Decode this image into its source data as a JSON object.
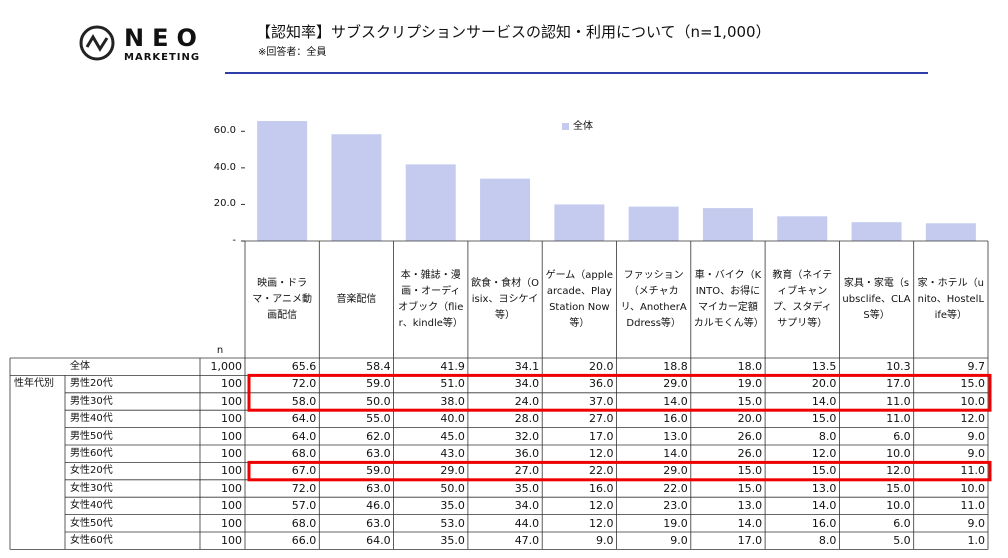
{
  "logo": {
    "name": "NEO",
    "sub": "MARKETING"
  },
  "header": {
    "title": "【認知率】サブスクリプションサービスの認知・利用について（n=1,000）",
    "subtitle": "※回答者：全員"
  },
  "chart_data": {
    "type": "bar",
    "categories": [
      "映画・ドラマ・アニメ動画配信",
      "音楽配信",
      "本・雑誌・漫画・オーディオブック（flier、kindle等）",
      "飲食・食材（Oisix、ヨシケイ等）",
      "ゲーム（apple arcade、PlayStation Now等）",
      "ファッション（メチャカリ、AnotherADdress等）",
      "車・バイク（KINTO、お得にマイカー定額カルモくん等）",
      "教育（ネイティブキャンプ、スタディサプリ等）",
      "家具・家電（subsclife、CLAS等）",
      "家・ホテル（unito、HostelLife等）"
    ],
    "series": [
      {
        "name": "全体",
        "color": "#c5cbef",
        "values": [
          65.6,
          58.4,
          41.9,
          34.1,
          20.0,
          18.8,
          18.0,
          13.5,
          10.3,
          9.7
        ]
      }
    ],
    "ylim": [
      0,
      70
    ],
    "yticks": [
      {
        "value": 0,
        "label": "-"
      },
      {
        "value": 20,
        "label": "20.0"
      },
      {
        "value": 40,
        "label": "40.0"
      },
      {
        "value": 60,
        "label": "60.0"
      }
    ],
    "legend": "top"
  },
  "table": {
    "n_header": "n",
    "group": "性年代別",
    "total": {
      "label": "全体",
      "n": "1,000",
      "values": [
        "65.6",
        "58.4",
        "41.9",
        "34.1",
        "20.0",
        "18.8",
        "18.0",
        "13.5",
        "10.3",
        "9.7"
      ]
    },
    "rows": [
      {
        "label": "男性20代",
        "n": "100",
        "values": [
          "72.0",
          "59.0",
          "51.0",
          "34.0",
          "36.0",
          "29.0",
          "19.0",
          "20.0",
          "17.0",
          "15.0"
        ]
      },
      {
        "label": "男性30代",
        "n": "100",
        "values": [
          "58.0",
          "50.0",
          "38.0",
          "24.0",
          "37.0",
          "14.0",
          "15.0",
          "14.0",
          "11.0",
          "10.0"
        ]
      },
      {
        "label": "男性40代",
        "n": "100",
        "values": [
          "64.0",
          "55.0",
          "40.0",
          "28.0",
          "27.0",
          "16.0",
          "20.0",
          "15.0",
          "11.0",
          "12.0"
        ]
      },
      {
        "label": "男性50代",
        "n": "100",
        "values": [
          "64.0",
          "62.0",
          "45.0",
          "32.0",
          "17.0",
          "13.0",
          "26.0",
          "8.0",
          "6.0",
          "9.0"
        ]
      },
      {
        "label": "男性60代",
        "n": "100",
        "values": [
          "68.0",
          "63.0",
          "43.0",
          "36.0",
          "12.0",
          "14.0",
          "26.0",
          "12.0",
          "10.0",
          "9.0"
        ]
      },
      {
        "label": "女性20代",
        "n": "100",
        "values": [
          "67.0",
          "59.0",
          "29.0",
          "27.0",
          "22.0",
          "29.0",
          "15.0",
          "15.0",
          "12.0",
          "11.0"
        ]
      },
      {
        "label": "女性30代",
        "n": "100",
        "values": [
          "72.0",
          "63.0",
          "50.0",
          "35.0",
          "16.0",
          "22.0",
          "15.0",
          "13.0",
          "15.0",
          "10.0"
        ]
      },
      {
        "label": "女性40代",
        "n": "100",
        "values": [
          "57.0",
          "46.0",
          "35.0",
          "34.0",
          "12.0",
          "23.0",
          "13.0",
          "14.0",
          "10.0",
          "11.0"
        ]
      },
      {
        "label": "女性50代",
        "n": "100",
        "values": [
          "68.0",
          "63.0",
          "53.0",
          "44.0",
          "12.0",
          "19.0",
          "14.0",
          "16.0",
          "6.0",
          "9.0"
        ]
      },
      {
        "label": "女性60代",
        "n": "100",
        "values": [
          "66.0",
          "64.0",
          "35.0",
          "47.0",
          "9.0",
          "9.0",
          "17.0",
          "8.0",
          "5.0",
          "1.0"
        ]
      }
    ]
  }
}
